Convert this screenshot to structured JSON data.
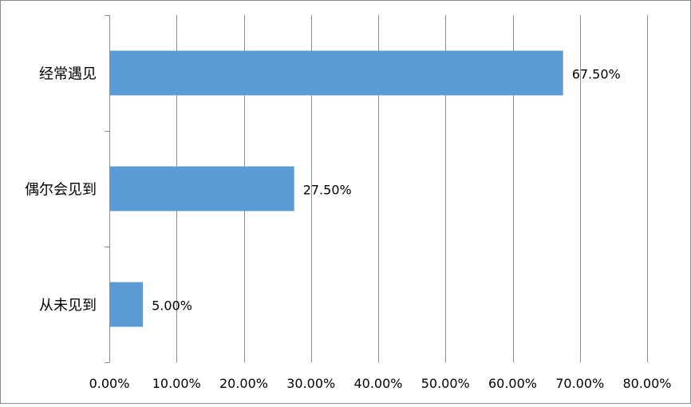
{
  "chart_data": {
    "type": "bar",
    "orientation": "horizontal",
    "categories": [
      "经常遇见",
      "偶尔会见到",
      "从未见到"
    ],
    "values": [
      0.675,
      0.275,
      0.05
    ],
    "data_labels": [
      "67.50%",
      "27.50%",
      "5.00%"
    ],
    "xlim": [
      0,
      0.8
    ],
    "x_ticks": [
      0,
      0.1,
      0.2,
      0.3,
      0.4,
      0.5,
      0.6,
      0.7,
      0.8
    ],
    "x_tick_labels": [
      "0.00%",
      "10.00%",
      "20.00%",
      "30.00%",
      "40.00%",
      "50.00%",
      "60.00%",
      "70.00%",
      "80.00%"
    ],
    "title": "",
    "xlabel": "",
    "ylabel": "",
    "grid": "vertical",
    "legend": "none",
    "colors": {
      "bar": "#5b9bd5",
      "gridline": "#8c8c8c",
      "axis": "#8c8c8c"
    }
  }
}
